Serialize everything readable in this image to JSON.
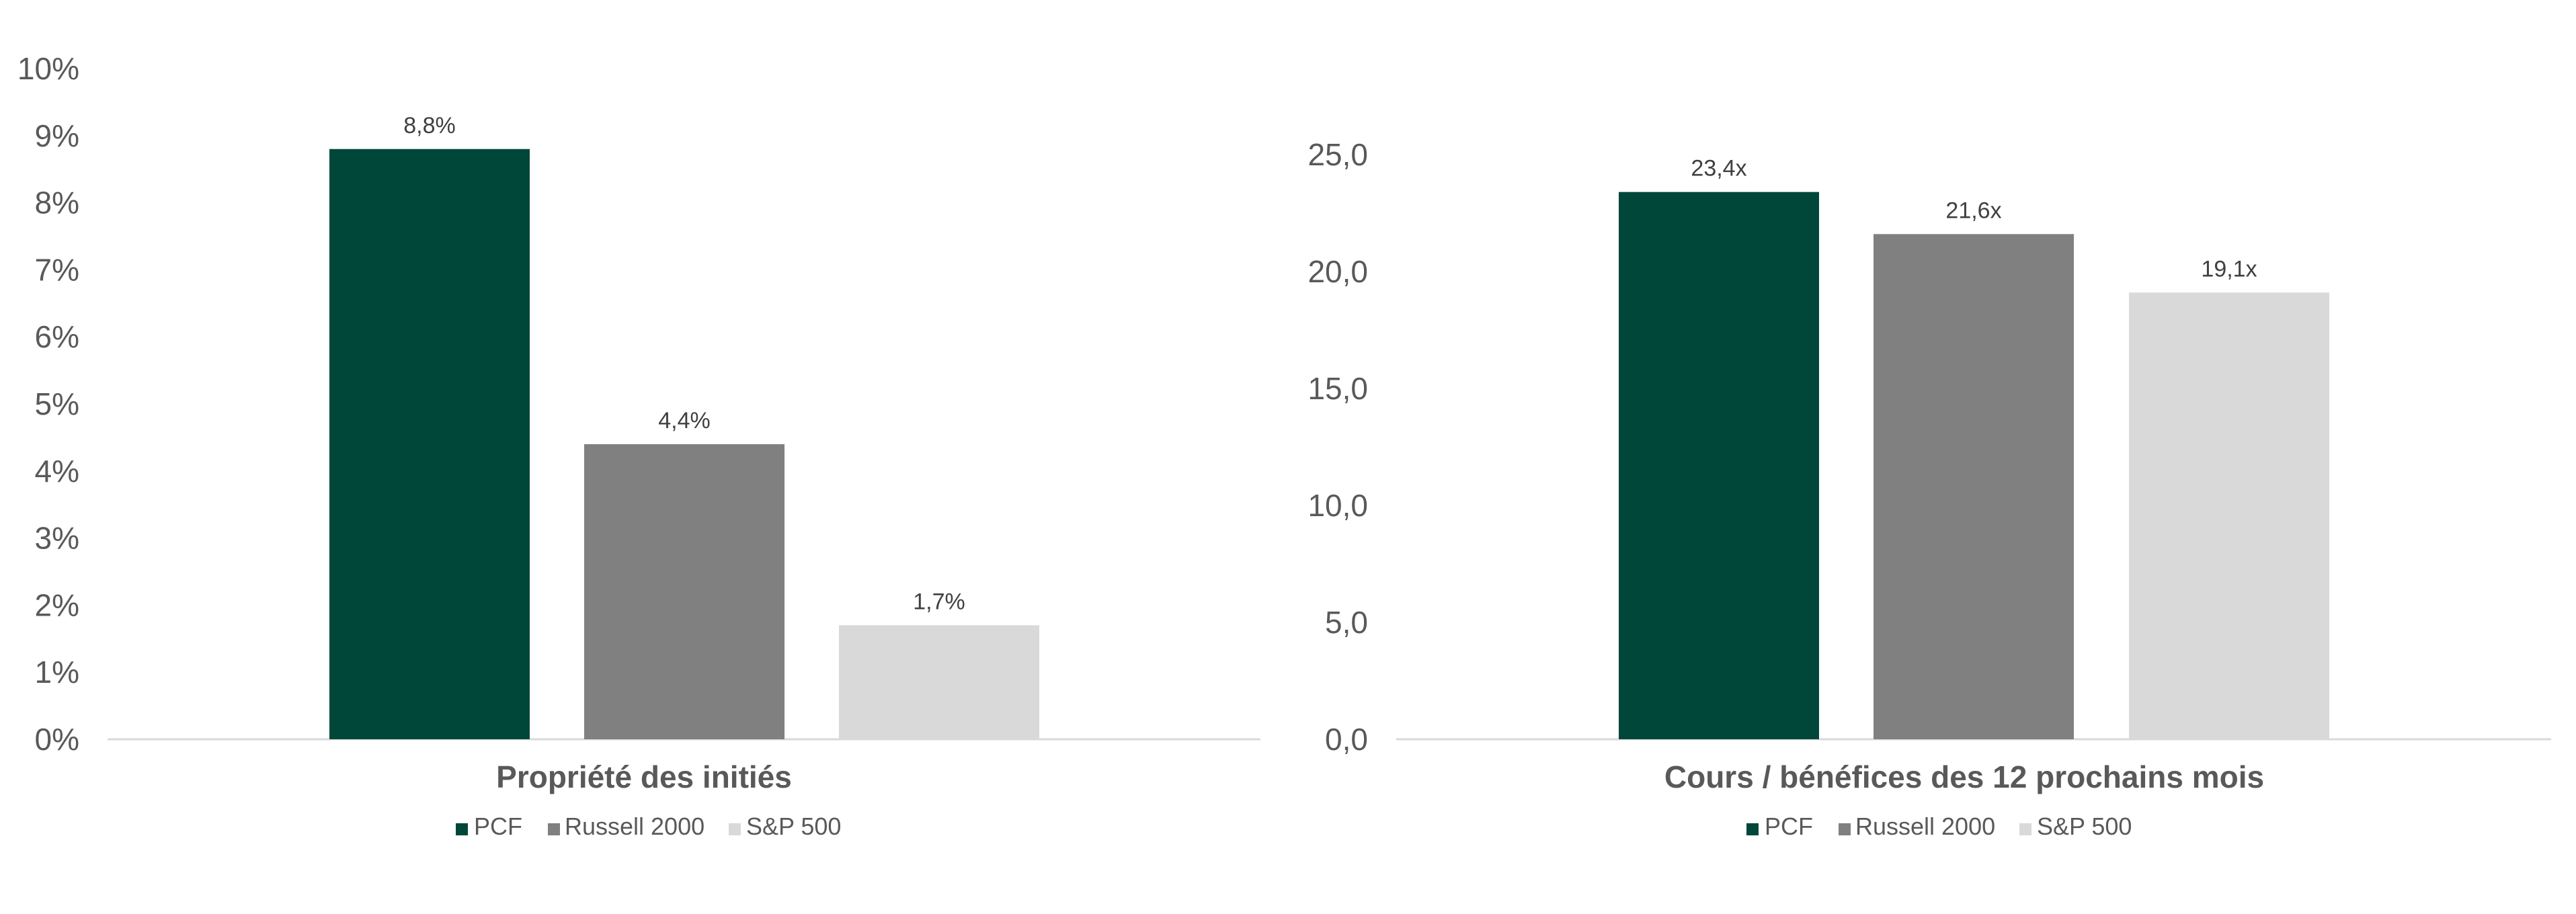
{
  "chart_data": [
    {
      "type": "bar",
      "categories": [
        "Propriété des initiés"
      ],
      "series": [
        {
          "name": "PCF",
          "values": [
            8.8
          ],
          "label": "8,8%",
          "color": "#00473a"
        },
        {
          "name": "Russell 2000",
          "values": [
            4.4
          ],
          "label": "4,4%",
          "color": "#808080"
        },
        {
          "name": "S&P 500",
          "values": [
            1.7
          ],
          "label": "1,7%",
          "color": "#d9d9d9"
        }
      ],
      "xlabel": "Propriété des initiés",
      "ylabel": "",
      "ylim": [
        0,
        10
      ],
      "yticks": [
        "0%",
        "1%",
        "2%",
        "3%",
        "4%",
        "5%",
        "6%",
        "7%",
        "8%",
        "9%",
        "10%"
      ],
      "grid": false,
      "legend": "bottom"
    },
    {
      "type": "bar",
      "categories": [
        "Cours / bénéfices des 12 prochains mois"
      ],
      "series": [
        {
          "name": "PCF",
          "values": [
            23.4
          ],
          "label": "23,4x",
          "color": "#00473a"
        },
        {
          "name": "Russell 2000",
          "values": [
            21.6
          ],
          "label": "21,6x",
          "color": "#808080"
        },
        {
          "name": "S&P 500",
          "values": [
            19.1
          ],
          "label": "19,1x",
          "color": "#d9d9d9"
        }
      ],
      "xlabel": "Cours / bénéfices des 12 prochains mois",
      "ylabel": "",
      "ylim": [
        0,
        25
      ],
      "yticks": [
        "0,0",
        "5,0",
        "10,0",
        "15,0",
        "20,0",
        "25,0"
      ],
      "grid": false,
      "legend": "bottom"
    }
  ]
}
